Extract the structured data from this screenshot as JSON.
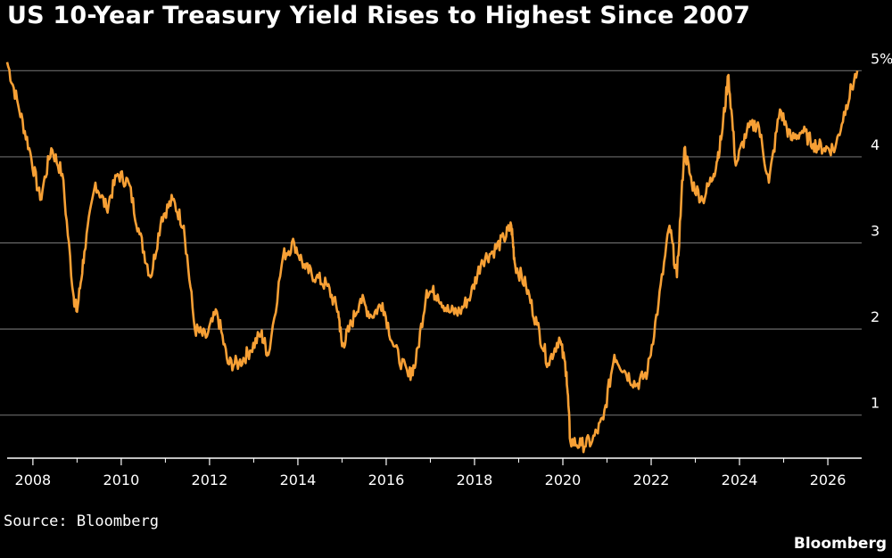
{
  "chart_data": {
    "type": "line",
    "title": "US 10-Year Treasury Yield Rises to Highest Since 2007",
    "xlabel": "",
    "ylabel": "",
    "x_ticks": [
      "2008",
      "2010",
      "2012",
      "2014",
      "2016",
      "2018",
      "2020",
      "2022",
      "2024",
      "2026"
    ],
    "y_ticks": [
      "1",
      "2",
      "3",
      "4",
      "5%"
    ],
    "ylim": [
      0.5,
      5.2
    ],
    "xlim": [
      "2007-06-01",
      "2026-09-30"
    ],
    "grid": true,
    "legend": "none",
    "series": [
      {
        "color": "#f7a035",
        "x": [
          "2007-06",
          "2007-09",
          "2007-12",
          "2008-03",
          "2008-06",
          "2008-09",
          "2008-12",
          "2009-01",
          "2009-03",
          "2009-06",
          "2009-09",
          "2009-12",
          "2010-03",
          "2010-06",
          "2010-09",
          "2010-12",
          "2011-03",
          "2011-06",
          "2011-09",
          "2011-12",
          "2012-03",
          "2012-06",
          "2012-09",
          "2012-12",
          "2013-03",
          "2013-05",
          "2013-09",
          "2013-12",
          "2014-03",
          "2014-06",
          "2014-09",
          "2014-12",
          "2015-01",
          "2015-03",
          "2015-06",
          "2015-09",
          "2015-12",
          "2016-03",
          "2016-07",
          "2016-09",
          "2016-12",
          "2017-03",
          "2017-06",
          "2017-09",
          "2017-12",
          "2018-03",
          "2018-06",
          "2018-09",
          "2018-11",
          "2018-12",
          "2019-03",
          "2019-06",
          "2019-09",
          "2019-12",
          "2020-02",
          "2020-03",
          "2020-06",
          "2020-09",
          "2020-12",
          "2021-03",
          "2021-06",
          "2021-09",
          "2021-12",
          "2022-03",
          "2022-06",
          "2022-08",
          "2022-10",
          "2022-12",
          "2023-03",
          "2023-06",
          "2023-08",
          "2023-10",
          "2023-12",
          "2024-03",
          "2024-06",
          "2024-09",
          "2024-12",
          "2025-03",
          "2025-06",
          "2025-09",
          "2025-12",
          "2026-03",
          "2026-06",
          "2026-09"
        ],
        "values": [
          5.1,
          4.6,
          4.1,
          3.5,
          4.1,
          3.8,
          2.4,
          2.2,
          2.9,
          3.7,
          3.4,
          3.8,
          3.7,
          3.1,
          2.6,
          3.3,
          3.5,
          3.2,
          2.0,
          1.9,
          2.2,
          1.6,
          1.6,
          1.75,
          1.95,
          1.7,
          2.85,
          3.0,
          2.7,
          2.6,
          2.5,
          2.2,
          1.8,
          2.0,
          2.35,
          2.15,
          2.3,
          1.8,
          1.45,
          1.6,
          2.45,
          2.4,
          2.2,
          2.2,
          2.4,
          2.8,
          2.9,
          3.05,
          3.2,
          2.75,
          2.5,
          2.05,
          1.6,
          1.9,
          1.5,
          0.7,
          0.65,
          0.7,
          0.95,
          1.7,
          1.5,
          1.35,
          1.5,
          2.3,
          3.2,
          2.6,
          4.1,
          3.7,
          3.5,
          3.8,
          4.2,
          4.95,
          3.9,
          4.3,
          4.4,
          3.7,
          4.55,
          4.2,
          4.3,
          4.15,
          4.1,
          4.1,
          4.6,
          5.0
        ]
      }
    ]
  },
  "footer": {
    "source": "Source: Bloomberg",
    "brand": "Bloomberg"
  },
  "colors": {
    "background": "#000000",
    "line": "#f7a035",
    "grid": "#6a6a6a",
    "text": "#ffffff"
  }
}
